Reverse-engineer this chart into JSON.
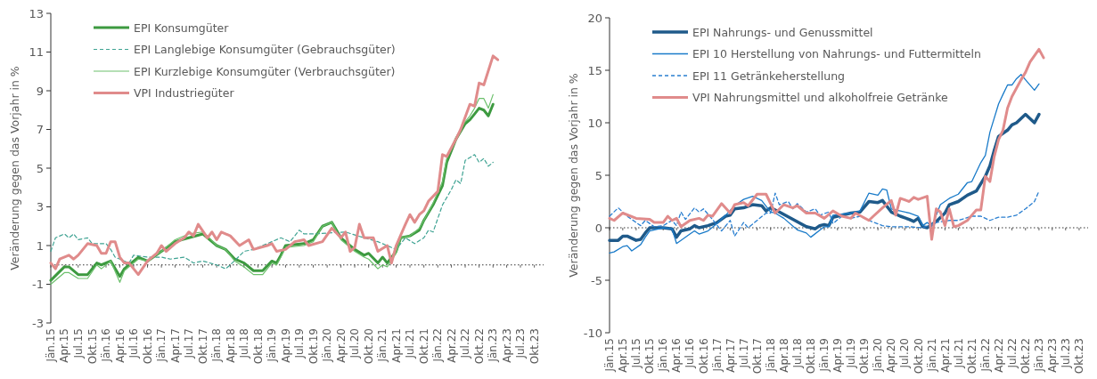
{
  "chart_data": [
    {
      "type": "line",
      "ylabel": "Veränderung gegen das Vorjahr in %",
      "xlim": [
        "2015-01",
        "2023-12"
      ],
      "ylim": [
        -3,
        13
      ],
      "yticks": [
        -3,
        -1,
        1,
        3,
        5,
        7,
        9,
        11,
        13
      ],
      "legend": "top left",
      "ref_lines": [
        {
          "axis": "y",
          "value": 0,
          "color": "#333333",
          "line_style": "dotted"
        }
      ],
      "xticks": [
        {
          "value": "2015-01",
          "label": "Jän.15"
        },
        {
          "value": "2015-04",
          "label": "Apr.15"
        },
        {
          "value": "2015-07",
          "label": "Jul.15"
        },
        {
          "value": "2015-10",
          "label": "Okt.15"
        },
        {
          "value": "2016-01",
          "label": "Jän.16"
        },
        {
          "value": "2016-04",
          "label": "Apr.16"
        },
        {
          "value": "2016-07",
          "label": "Jul.16"
        },
        {
          "value": "2016-10",
          "label": "Okt.16"
        },
        {
          "value": "2017-01",
          "label": "Jän.17"
        },
        {
          "value": "2017-04",
          "label": "Apr.17"
        },
        {
          "value": "2017-07",
          "label": "Jul.17"
        },
        {
          "value": "2017-10",
          "label": "Okt.17"
        },
        {
          "value": "2018-01",
          "label": "Jän.18"
        },
        {
          "value": "2018-04",
          "label": "Apr.18"
        },
        {
          "value": "2018-07",
          "label": "Jul.18"
        },
        {
          "value": "2018-10",
          "label": "Okt.18"
        },
        {
          "value": "2019-01",
          "label": "Jän.19"
        },
        {
          "value": "2019-04",
          "label": "Apr.19"
        },
        {
          "value": "2019-07",
          "label": "Jul.19"
        },
        {
          "value": "2019-10",
          "label": "Okt.19"
        },
        {
          "value": "2020-01",
          "label": "Jän.20"
        },
        {
          "value": "2020-04",
          "label": "Apr.20"
        },
        {
          "value": "2020-07",
          "label": "Jul.20"
        },
        {
          "value": "2020-10",
          "label": "Okt.20"
        },
        {
          "value": "2021-01",
          "label": "Jän.21"
        },
        {
          "value": "2021-04",
          "label": "Apr.21"
        },
        {
          "value": "2021-07",
          "label": "Jul.21"
        },
        {
          "value": "2021-10",
          "label": "Okt.21"
        },
        {
          "value": "2022-01",
          "label": "Jän.22"
        },
        {
          "value": "2022-04",
          "label": "Apr.22"
        },
        {
          "value": "2022-07",
          "label": "Jul.22"
        },
        {
          "value": "2022-10",
          "label": "Okt.22"
        },
        {
          "value": "2023-01",
          "label": "Jän.23"
        },
        {
          "value": "2023-04",
          "label": "Apr.23"
        },
        {
          "value": "2023-07",
          "label": "Jul.23"
        },
        {
          "value": "2023-10",
          "label": "Okt.23"
        }
      ],
      "x": [
        "2015-01",
        "2015-04",
        "2015-05",
        "2015-07",
        "2015-09",
        "2015-11",
        "2015-12",
        "2016-02",
        "2016-04",
        "2016-05",
        "2016-08",
        "2016-10",
        "2017-01",
        "2017-04",
        "2017-07",
        "2017-10",
        "2017-11",
        "2018-01",
        "2018-03",
        "2018-05",
        "2018-07",
        "2018-09",
        "2018-11",
        "2019-01",
        "2019-02",
        "2019-03",
        "2019-04",
        "2019-08",
        "2019-10",
        "2019-12",
        "2020-02",
        "2020-04",
        "2020-07",
        "2020-09",
        "2020-10",
        "2020-12",
        "2021-01",
        "2021-02",
        "2021-04",
        "2021-05",
        "2021-07",
        "2021-09",
        "2021-10",
        "2021-12",
        "2022-02",
        "2022-03",
        "2022-05",
        "2022-07",
        "2022-08",
        "2022-09",
        "2022-10",
        "2022-11",
        "2022-12",
        "2023-01"
      ],
      "series": [
        {
          "name": "EPI Konsumgüter",
          "color": "#3d9a40",
          "line_style": "solid",
          "values": [
            -0.8,
            -0.1,
            -0.1,
            -0.5,
            -0.5,
            0.1,
            0.0,
            0.2,
            -0.6,
            -0.2,
            0.4,
            0.2,
            0.7,
            1.2,
            1.4,
            1.6,
            1.4,
            1.0,
            0.8,
            0.3,
            0.1,
            -0.3,
            -0.3,
            0.2,
            0.1,
            0.5,
            1.0,
            1.1,
            1.3,
            2.0,
            2.2,
            1.4,
            0.8,
            0.5,
            0.6,
            0.1,
            0.4,
            0.1,
            0.7,
            1.4,
            1.5,
            1.8,
            2.3,
            3.1,
            4.1,
            5.3,
            6.5,
            7.3,
            7.5,
            7.8,
            8.1,
            8.0,
            7.7,
            8.3
          ]
        },
        {
          "name": "EPI Langlebige Konsumgüter (Gebrauchsgüter)",
          "color": "#3fa393",
          "line_style": "dashed",
          "x": [
            "2015-01",
            "2015-02",
            "2015-04",
            "2015-05",
            "2015-06",
            "2015-07",
            "2015-09",
            "2015-10",
            "2016-01",
            "2016-02",
            "2016-03",
            "2016-06",
            "2016-07",
            "2016-10",
            "2017-01",
            "2017-03",
            "2017-06",
            "2017-08",
            "2017-10",
            "2018-01",
            "2018-03",
            "2018-04",
            "2018-07",
            "2018-09",
            "2018-12",
            "2019-03",
            "2019-05",
            "2019-07",
            "2019-08",
            "2019-10",
            "2020-05",
            "2020-09",
            "2020-12",
            "2021-04",
            "2021-06",
            "2021-08",
            "2021-10",
            "2021-11",
            "2021-12",
            "2022-02",
            "2022-04",
            "2022-05",
            "2022-06",
            "2022-07",
            "2022-09",
            "2022-10",
            "2022-11",
            "2022-12",
            "2023-01"
          ],
          "values": [
            0.7,
            1.4,
            1.6,
            1.4,
            1.6,
            1.3,
            1.4,
            1.1,
            1.1,
            0.8,
            0.4,
            0.1,
            0.5,
            0.4,
            0.4,
            0.3,
            0.4,
            0.1,
            0.2,
            0.0,
            -0.2,
            0.0,
            0.7,
            0.8,
            1.1,
            1.4,
            1.2,
            1.8,
            1.6,
            1.6,
            1.7,
            1.4,
            1.2,
            0.8,
            1.4,
            1.1,
            1.4,
            1.8,
            1.7,
            3.1,
            3.9,
            4.4,
            4.2,
            5.4,
            5.7,
            5.3,
            5.5,
            5.1,
            5.3
          ]
        },
        {
          "name": "EPI Kurzlebige Konsumgüter (Verbrauchsgüter)",
          "color": "#6cc06c",
          "line_style": "solid",
          "values": [
            -1.0,
            -0.4,
            -0.4,
            -0.7,
            -0.7,
            0.0,
            -0.2,
            0.2,
            -0.9,
            -0.3,
            0.3,
            0.2,
            0.7,
            1.3,
            1.6,
            1.7,
            1.5,
            1.0,
            0.8,
            0.2,
            -0.1,
            -0.5,
            -0.5,
            0.1,
            0.0,
            0.4,
            0.9,
            1.0,
            1.2,
            2.0,
            2.2,
            1.3,
            0.7,
            0.4,
            0.3,
            -0.2,
            0.0,
            -0.1,
            0.6,
            1.4,
            1.5,
            1.9,
            2.3,
            3.2,
            4.3,
            5.5,
            6.6,
            7.4,
            7.7,
            8.1,
            8.6,
            8.6,
            8.1,
            8.8
          ]
        },
        {
          "name": "VPI Industriegüter",
          "color": "#e08b8b",
          "line_style": "solid",
          "x": [
            "2015-01",
            "2015-02",
            "2015-03",
            "2015-05",
            "2015-06",
            "2015-07",
            "2015-09",
            "2015-11",
            "2015-12",
            "2016-01",
            "2016-02",
            "2016-03",
            "2016-04",
            "2016-05",
            "2016-06",
            "2016-08",
            "2016-10",
            "2016-12",
            "2017-01",
            "2017-02",
            "2017-04",
            "2017-06",
            "2017-07",
            "2017-08",
            "2017-09",
            "2017-11",
            "2017-12",
            "2018-01",
            "2018-02",
            "2018-04",
            "2018-06",
            "2018-08",
            "2018-09",
            "2018-12",
            "2019-01",
            "2019-02",
            "2019-04",
            "2019-06",
            "2019-08",
            "2019-09",
            "2019-12",
            "2020-02",
            "2020-04",
            "2020-05",
            "2020-06",
            "2020-07",
            "2020-08",
            "2020-09",
            "2020-11",
            "2020-12",
            "2021-02",
            "2021-03",
            "2021-04",
            "2021-06",
            "2021-07",
            "2021-08",
            "2021-09",
            "2021-10",
            "2021-11",
            "2022-01",
            "2022-02",
            "2022-03",
            "2022-05",
            "2022-06",
            "2022-08",
            "2022-09",
            "2022-10",
            "2022-11",
            "2023-01",
            "2023-02"
          ],
          "values": [
            0.1,
            -0.2,
            0.3,
            0.5,
            0.3,
            0.5,
            1.1,
            1.0,
            0.6,
            0.6,
            1.2,
            1.2,
            0.4,
            0.1,
            0.1,
            -0.5,
            0.2,
            0.6,
            1.0,
            0.7,
            1.1,
            1.4,
            1.7,
            1.5,
            2.1,
            1.4,
            1.7,
            1.3,
            1.7,
            1.5,
            1.0,
            1.3,
            0.8,
            1.0,
            1.1,
            0.7,
            0.8,
            1.2,
            1.3,
            1.0,
            1.2,
            1.9,
            1.4,
            1.7,
            0.7,
            0.9,
            2.1,
            1.4,
            1.4,
            0.7,
            1.0,
            0.1,
            1.0,
            2.1,
            2.6,
            2.2,
            2.6,
            2.8,
            3.3,
            3.8,
            5.7,
            5.6,
            6.5,
            7.0,
            8.3,
            8.2,
            9.4,
            9.3,
            10.8,
            10.6
          ]
        }
      ]
    },
    {
      "type": "line",
      "ylabel": "Veränderung gegen das Vorjahr in %",
      "xlim": [
        "2015-01",
        "2023-12"
      ],
      "ylim": [
        -10,
        20
      ],
      "yticks": [
        -10,
        -5,
        0,
        5,
        10,
        15,
        20
      ],
      "legend": "top left",
      "ref_lines": [
        {
          "axis": "y",
          "value": 0,
          "color": "#333333",
          "line_style": "dotted"
        }
      ],
      "xticks": [
        {
          "value": "2015-01",
          "label": "Jän.15"
        },
        {
          "value": "2015-04",
          "label": "Apr.15"
        },
        {
          "value": "2015-07",
          "label": "Jul.15"
        },
        {
          "value": "2015-10",
          "label": "Okt.15"
        },
        {
          "value": "2016-01",
          "label": "Jän.16"
        },
        {
          "value": "2016-04",
          "label": "Apr.16"
        },
        {
          "value": "2016-07",
          "label": "Jul.16"
        },
        {
          "value": "2016-10",
          "label": "Okt.16"
        },
        {
          "value": "2017-01",
          "label": "Jän.17"
        },
        {
          "value": "2017-04",
          "label": "Apr.17"
        },
        {
          "value": "2017-07",
          "label": "Jul.17"
        },
        {
          "value": "2017-10",
          "label": "Okt.17"
        },
        {
          "value": "2018-01",
          "label": "Jän.18"
        },
        {
          "value": "2018-04",
          "label": "Apr.18"
        },
        {
          "value": "2018-07",
          "label": "Jul.18"
        },
        {
          "value": "2018-10",
          "label": "Okt.18"
        },
        {
          "value": "2019-01",
          "label": "Jän.19"
        },
        {
          "value": "2019-04",
          "label": "Apr.19"
        },
        {
          "value": "2019-07",
          "label": "Jul.19"
        },
        {
          "value": "2019-10",
          "label": "Okt.19"
        },
        {
          "value": "2020-01",
          "label": "Jän.20"
        },
        {
          "value": "2020-04",
          "label": "Apr.20"
        },
        {
          "value": "2020-07",
          "label": "Jul.20"
        },
        {
          "value": "2020-10",
          "label": "Okt.20"
        },
        {
          "value": "2021-01",
          "label": "Jän.21"
        },
        {
          "value": "2021-04",
          "label": "Apr.21"
        },
        {
          "value": "2021-07",
          "label": "Jul.21"
        },
        {
          "value": "2021-10",
          "label": "Okt.21"
        },
        {
          "value": "2022-01",
          "label": "Jän.22"
        },
        {
          "value": "2022-04",
          "label": "Apr.22"
        },
        {
          "value": "2022-07",
          "label": "Jul.22"
        },
        {
          "value": "2022-10",
          "label": "Okt.22"
        },
        {
          "value": "2023-01",
          "label": "Jän.23"
        },
        {
          "value": "2023-04",
          "label": "Apr.23"
        },
        {
          "value": "2023-07",
          "label": "Jul.23"
        },
        {
          "value": "2023-10",
          "label": "Okt.23"
        }
      ],
      "series": [
        {
          "name": "EPI Nahrungs- und Genussmittel",
          "color": "#1f5a8a",
          "line_style": "solid",
          "x": [
            "2015-01",
            "2015-03",
            "2015-04",
            "2015-05",
            "2015-07",
            "2015-08",
            "2015-09",
            "2015-10",
            "2016-01",
            "2016-03",
            "2016-04",
            "2016-05",
            "2016-07",
            "2016-08",
            "2016-09",
            "2016-11",
            "2017-01",
            "2017-03",
            "2017-04",
            "2017-05",
            "2017-07",
            "2017-09",
            "2017-11",
            "2017-12",
            "2018-01",
            "2018-03",
            "2018-06",
            "2018-09",
            "2018-11",
            "2018-12",
            "2019-01",
            "2019-02",
            "2019-03",
            "2019-07",
            "2019-09",
            "2019-11",
            "2020-01",
            "2020-02",
            "2020-04",
            "2020-06",
            "2020-08",
            "2020-09",
            "2020-10",
            "2020-11",
            "2020-12",
            "2021-02",
            "2021-04",
            "2021-05",
            "2021-07",
            "2021-09",
            "2021-11",
            "2022-01",
            "2022-02",
            "2022-03",
            "2022-04",
            "2022-06",
            "2022-07",
            "2022-08",
            "2022-10",
            "2022-12",
            "2023-01"
          ],
          "values": [
            -1.2,
            -1.2,
            -0.8,
            -0.8,
            -1.2,
            -1.1,
            -0.5,
            0.0,
            0.0,
            -0.1,
            -0.9,
            -0.3,
            -0.1,
            0.2,
            0.0,
            0.2,
            0.5,
            1.1,
            1.2,
            1.8,
            1.9,
            2.2,
            2.1,
            1.6,
            1.9,
            1.5,
            0.8,
            0.1,
            -0.1,
            0.2,
            0.3,
            0.2,
            1.0,
            1.4,
            1.5,
            2.5,
            2.4,
            2.6,
            1.5,
            1.1,
            0.8,
            0.6,
            0.9,
            0.1,
            0.0,
            0.6,
            1.4,
            2.2,
            2.5,
            3.1,
            3.5,
            4.9,
            5.9,
            7.3,
            8.7,
            9.3,
            9.8,
            10.0,
            10.8,
            10.0,
            10.8
          ]
        },
        {
          "name": "EPI 10 Herstellung von Nahrungs- und Futtermitteln",
          "color": "#1a7bc9",
          "line_style": "solid",
          "x": [
            "2015-01",
            "2015-02",
            "2015-04",
            "2015-05",
            "2015-06",
            "2015-08",
            "2015-09",
            "2015-10",
            "2016-01",
            "2016-03",
            "2016-04",
            "2016-07",
            "2016-08",
            "2016-09",
            "2016-11",
            "2017-01",
            "2017-03",
            "2017-05",
            "2017-07",
            "2017-09",
            "2017-11",
            "2018-01",
            "2018-02",
            "2018-04",
            "2018-07",
            "2018-09",
            "2018-10",
            "2019-01",
            "2019-02",
            "2019-03",
            "2019-07",
            "2019-09",
            "2019-11",
            "2020-01",
            "2020-02",
            "2020-03",
            "2020-04",
            "2020-06",
            "2020-08",
            "2020-10",
            "2020-11",
            "2020-12",
            "2021-01",
            "2021-03",
            "2021-05",
            "2021-07",
            "2021-09",
            "2021-10",
            "2021-12",
            "2022-01",
            "2022-02",
            "2022-04",
            "2022-05",
            "2022-06",
            "2022-07",
            "2022-08",
            "2022-09",
            "2022-10",
            "2022-12",
            "2023-01"
          ],
          "values": [
            -2.4,
            -2.3,
            -1.8,
            -1.7,
            -2.2,
            -1.6,
            -0.9,
            -0.3,
            0.0,
            -0.1,
            -1.5,
            -0.6,
            -0.3,
            -0.6,
            -0.3,
            0.4,
            1.2,
            2.1,
            2.7,
            3.0,
            2.6,
            1.5,
            1.4,
            0.9,
            -0.2,
            -0.5,
            -0.9,
            0.1,
            0.1,
            1.2,
            1.4,
            1.6,
            3.3,
            3.1,
            3.7,
            3.6,
            1.8,
            1.6,
            1.4,
            1.1,
            0.2,
            0.5,
            0.1,
            2.2,
            2.8,
            3.2,
            4.3,
            4.4,
            6.2,
            6.9,
            9.1,
            11.8,
            12.7,
            13.6,
            13.6,
            14.2,
            14.6,
            14.1,
            13.1,
            13.7
          ]
        },
        {
          "name": "EPI 11 Getränkeherstellung",
          "color": "#2a7fd0",
          "line_style": "dashed",
          "x": [
            "2015-01",
            "2015-03",
            "2015-05",
            "2015-08",
            "2015-09",
            "2015-11",
            "2016-01",
            "2016-03",
            "2016-04",
            "2016-05",
            "2016-06",
            "2016-08",
            "2016-09",
            "2016-10",
            "2016-12",
            "2017-02",
            "2017-04",
            "2017-05",
            "2017-07",
            "2017-08",
            "2017-10",
            "2017-12",
            "2018-01",
            "2018-02",
            "2018-03",
            "2018-05",
            "2018-06",
            "2018-07",
            "2018-09",
            "2018-11",
            "2018-12",
            "2019-02",
            "2019-03",
            "2019-05",
            "2019-07",
            "2019-09",
            "2019-11",
            "2020-02",
            "2020-04",
            "2020-08",
            "2020-11",
            "2021-02",
            "2021-05",
            "2021-07",
            "2021-10",
            "2021-12",
            "2022-02",
            "2022-04",
            "2022-06",
            "2022-08",
            "2022-10",
            "2022-12",
            "2023-01"
          ],
          "values": [
            1.1,
            1.9,
            1.1,
            0.2,
            0.7,
            0.1,
            0.2,
            0.7,
            0.2,
            1.5,
            0.8,
            1.9,
            1.5,
            1.8,
            0.8,
            -0.3,
            0.7,
            -0.8,
            0.5,
            0.0,
            0.7,
            1.4,
            1.4,
            3.3,
            2.2,
            2.5,
            1.8,
            2.3,
            1.5,
            1.8,
            1.2,
            1.5,
            0.4,
            1.1,
            0.9,
            1.1,
            0.7,
            0.2,
            0.1,
            0.1,
            0.0,
            0.5,
            0.7,
            0.7,
            1.1,
            1.1,
            0.7,
            1.0,
            1.0,
            1.2,
            1.8,
            2.5,
            3.5
          ]
        },
        {
          "name": "VPI Nahrungsmittel und alkoholfreie Getränke",
          "color": "#e08b8b",
          "line_style": "solid",
          "x": [
            "2015-01",
            "2015-02",
            "2015-04",
            "2015-07",
            "2015-10",
            "2015-11",
            "2016-01",
            "2016-02",
            "2016-03",
            "2016-04",
            "2016-05",
            "2016-07",
            "2016-09",
            "2016-10",
            "2016-11",
            "2016-12",
            "2017-02",
            "2017-04",
            "2017-05",
            "2017-07",
            "2017-08",
            "2017-10",
            "2017-12",
            "2018-02",
            "2018-04",
            "2018-06",
            "2018-07",
            "2018-09",
            "2018-11",
            "2019-01",
            "2019-03",
            "2019-05",
            "2019-07",
            "2019-08",
            "2019-11",
            "2019-12",
            "2020-02",
            "2020-04",
            "2020-05",
            "2020-06",
            "2020-08",
            "2020-09",
            "2020-10",
            "2020-12",
            "2021-01",
            "2021-02",
            "2021-03",
            "2021-04",
            "2021-05",
            "2021-06",
            "2021-07",
            "2021-09",
            "2021-10",
            "2021-11",
            "2021-12",
            "2022-01",
            "2022-02",
            "2022-03",
            "2022-04",
            "2022-05",
            "2022-06",
            "2022-07",
            "2022-09",
            "2022-10",
            "2022-11",
            "2023-01",
            "2023-02"
          ],
          "values": [
            0.9,
            0.7,
            1.4,
            0.9,
            0.8,
            0.5,
            0.5,
            1.1,
            0.7,
            0.9,
            0.1,
            0.7,
            0.9,
            0.7,
            1.2,
            1.1,
            2.3,
            1.4,
            2.2,
            2.4,
            2.1,
            3.2,
            3.2,
            1.4,
            2.2,
            1.9,
            2.1,
            1.4,
            1.4,
            0.9,
            1.6,
            1.1,
            0.9,
            1.4,
            0.7,
            1.1,
            1.9,
            2.6,
            1.2,
            2.8,
            2.5,
            2.9,
            2.7,
            3.0,
            -1.1,
            1.8,
            1.5,
            0.2,
            1.8,
            0.1,
            0.2,
            0.7,
            1.2,
            1.7,
            1.7,
            4.9,
            4.4,
            6.7,
            8.4,
            9.3,
            11.4,
            12.5,
            14.1,
            14.8,
            15.8,
            17.0,
            16.2
          ]
        }
      ]
    }
  ]
}
